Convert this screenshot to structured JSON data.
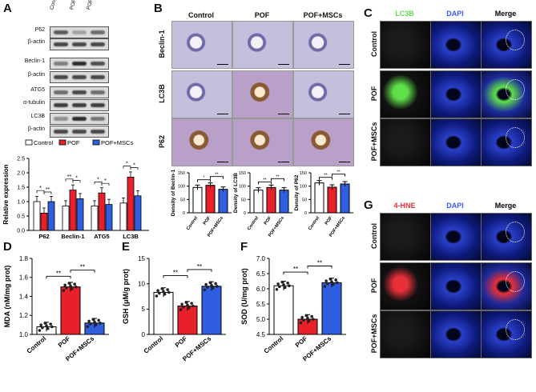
{
  "panels": {
    "A": "A",
    "B": "B",
    "C": "C",
    "D": "D",
    "E": "E",
    "F": "F",
    "G": "G"
  },
  "colors": {
    "control": "#ffffff",
    "pof": "#e8202a",
    "mscs": "#2f5fe0"
  },
  "panelA": {
    "lanes": [
      "Control",
      "POF",
      "POF+MSCs"
    ],
    "blots": [
      {
        "label": "P62"
      },
      {
        "label": "β-actin"
      },
      {
        "label": "Beclin-1"
      },
      {
        "label": "β-actin"
      },
      {
        "label": "ATG5"
      },
      {
        "label": "α-tubulin"
      },
      {
        "label": "LC3B"
      },
      {
        "label": "β-actin"
      }
    ]
  },
  "panelB": {
    "columns": [
      "Control",
      "POF",
      "POF+MSCs"
    ],
    "rows": [
      "Beclin-1",
      "LC3B",
      "P62"
    ]
  },
  "panelC": {
    "columns": [
      "LC3B",
      "DAPI",
      "Merge"
    ],
    "rows": [
      "Control",
      "POF",
      "POF+MSCs"
    ]
  },
  "panelG": {
    "columns": [
      "4-HNE",
      "DAPI",
      "Merge"
    ],
    "rows": [
      "Control",
      "POF",
      "POF+MSCs"
    ]
  },
  "chart_data": [
    {
      "id": "A-bar",
      "type": "bar",
      "categories": [
        "P62",
        "Beclin-1",
        "ATG5",
        "LC3B"
      ],
      "series": [
        {
          "name": "Control",
          "values": [
            1.0,
            0.85,
            0.85,
            0.95
          ]
        },
        {
          "name": "POF",
          "values": [
            0.6,
            1.4,
            1.3,
            1.85
          ]
        },
        {
          "name": "POF+MSCs",
          "values": [
            1.0,
            1.1,
            0.9,
            1.2
          ]
        }
      ],
      "ylabel": "Relative expression",
      "ylim": [
        0.0,
        2.5
      ],
      "yticks": [
        "0.0",
        "0.5",
        "1.0",
        "1.5",
        "2.0",
        "2.5"
      ],
      "legend_position": "top",
      "annotations": [
        "*",
        "**",
        "**",
        "*",
        "*",
        "*",
        "*",
        "*"
      ]
    },
    {
      "id": "B-beclin",
      "type": "bar",
      "categories": [
        "Control",
        "POF",
        "POF+MSCs"
      ],
      "values": [
        95,
        103,
        88
      ],
      "ylabel": "Density of Beclin-1",
      "ylim": [
        0,
        150
      ],
      "yticks": [
        "0",
        "50",
        "100",
        "150"
      ],
      "annotations": [
        "*",
        "**"
      ]
    },
    {
      "id": "B-lc3b",
      "type": "bar",
      "categories": [
        "Control",
        "POF",
        "POF+MSCs"
      ],
      "values": [
        85,
        95,
        85
      ],
      "ylabel": "Density of LC3B",
      "ylim": [
        0,
        150
      ],
      "yticks": [
        "0",
        "50",
        "100",
        "150"
      ],
      "annotations": [
        "**",
        "**"
      ]
    },
    {
      "id": "B-p62",
      "type": "bar",
      "categories": [
        "Control",
        "POF",
        "POF+MSCs"
      ],
      "values": [
        112,
        96,
        108
      ],
      "ylabel": "Density of P62",
      "ylim": [
        0,
        150
      ],
      "yticks": [
        "0",
        "50",
        "100",
        "150"
      ],
      "annotations": [
        "**",
        "**"
      ]
    },
    {
      "id": "D",
      "type": "bar",
      "categories": [
        "Control",
        "POF",
        "POF+MSCs"
      ],
      "values": [
        1.08,
        1.5,
        1.12
      ],
      "ylabel": "MDA (nM/mg prot)",
      "ylim": [
        1.0,
        1.8
      ],
      "yticks": [
        "1.0",
        "1.2",
        "1.4",
        "1.6",
        "1.8"
      ],
      "annotations": [
        "**",
        "**"
      ]
    },
    {
      "id": "E",
      "type": "bar",
      "categories": [
        "Control",
        "POF",
        "POF+MSCs"
      ],
      "values": [
        8.3,
        5.6,
        9.5
      ],
      "ylabel": "GSH (μM/g prot)",
      "ylim": [
        0,
        15
      ],
      "yticks": [
        "0",
        "5",
        "10",
        "15"
      ],
      "annotations": [
        "**",
        "**"
      ]
    },
    {
      "id": "F",
      "type": "bar",
      "categories": [
        "Control",
        "POF",
        "POF+MSCs"
      ],
      "values": [
        6.1,
        5.0,
        6.2
      ],
      "ylabel": "SOD (U/mg prot)",
      "ylim": [
        4.5,
        7.0
      ],
      "yticks": [
        "4.5",
        "5.0",
        "5.5",
        "6.0",
        "6.5",
        "7.0"
      ],
      "annotations": [
        "**",
        "**"
      ]
    }
  ]
}
